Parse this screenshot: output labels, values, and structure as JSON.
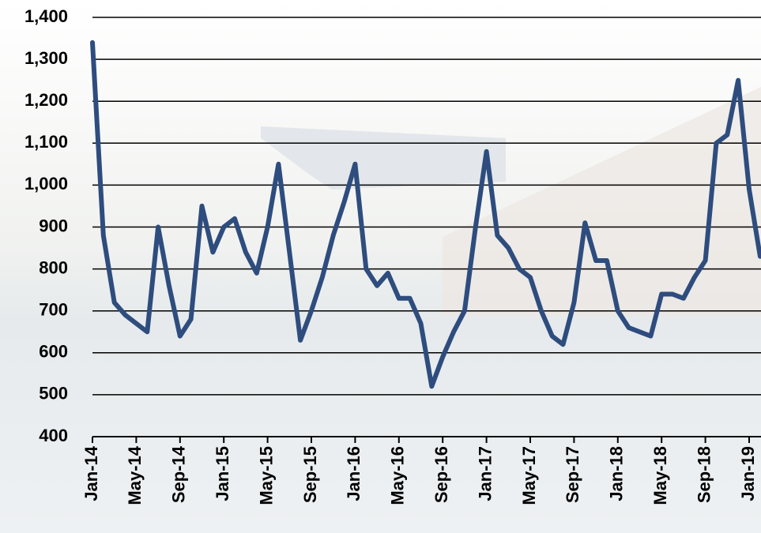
{
  "chart_data": {
    "type": "line",
    "categories": [
      "Jan-14",
      null,
      null,
      null,
      "May-14",
      null,
      null,
      null,
      "Sep-14",
      null,
      null,
      null,
      "Jan-15",
      null,
      null,
      null,
      "May-15",
      null,
      null,
      null,
      "Sep-15",
      null,
      null,
      null,
      "Jan-16",
      null,
      null,
      null,
      "May-16",
      null,
      null,
      null,
      "Sep-16",
      null,
      null,
      null,
      "Jan-17",
      null,
      null,
      null,
      "May-17",
      null,
      null,
      null,
      "Sep-17",
      null,
      null,
      null,
      "Jan-18",
      null,
      null,
      null,
      "May-18",
      null,
      null,
      null,
      "Sep-18",
      null,
      null,
      null,
      "Jan-19",
      null
    ],
    "series": [
      {
        "color": "#2e4d7e",
        "values": [
          1340,
          880,
          720,
          690,
          670,
          650,
          900,
          760,
          640,
          680,
          950,
          840,
          900,
          920,
          840,
          790,
          900,
          1050,
          840,
          630,
          700,
          780,
          880,
          960,
          1050,
          800,
          760,
          790,
          730,
          730,
          670,
          520,
          590,
          650,
          700,
          900,
          1080,
          880,
          850,
          800,
          780,
          700,
          640,
          620,
          720,
          910,
          820,
          820,
          700,
          660,
          650,
          640,
          740,
          740,
          730,
          780,
          820,
          1100,
          1120,
          1250,
          990,
          830
        ]
      }
    ],
    "ylim": [
      400,
      1400
    ],
    "yticks": [
      400,
      500,
      600,
      700,
      800,
      900,
      {
        "value": 1000,
        "label": "1,000"
      },
      {
        "value": 1100,
        "label": "1,100"
      },
      {
        "value": 1200,
        "label": "1,200"
      },
      {
        "value": 1300,
        "label": "1,300"
      },
      {
        "value": 1400,
        "label": "1,400"
      }
    ],
    "grid": true
  }
}
